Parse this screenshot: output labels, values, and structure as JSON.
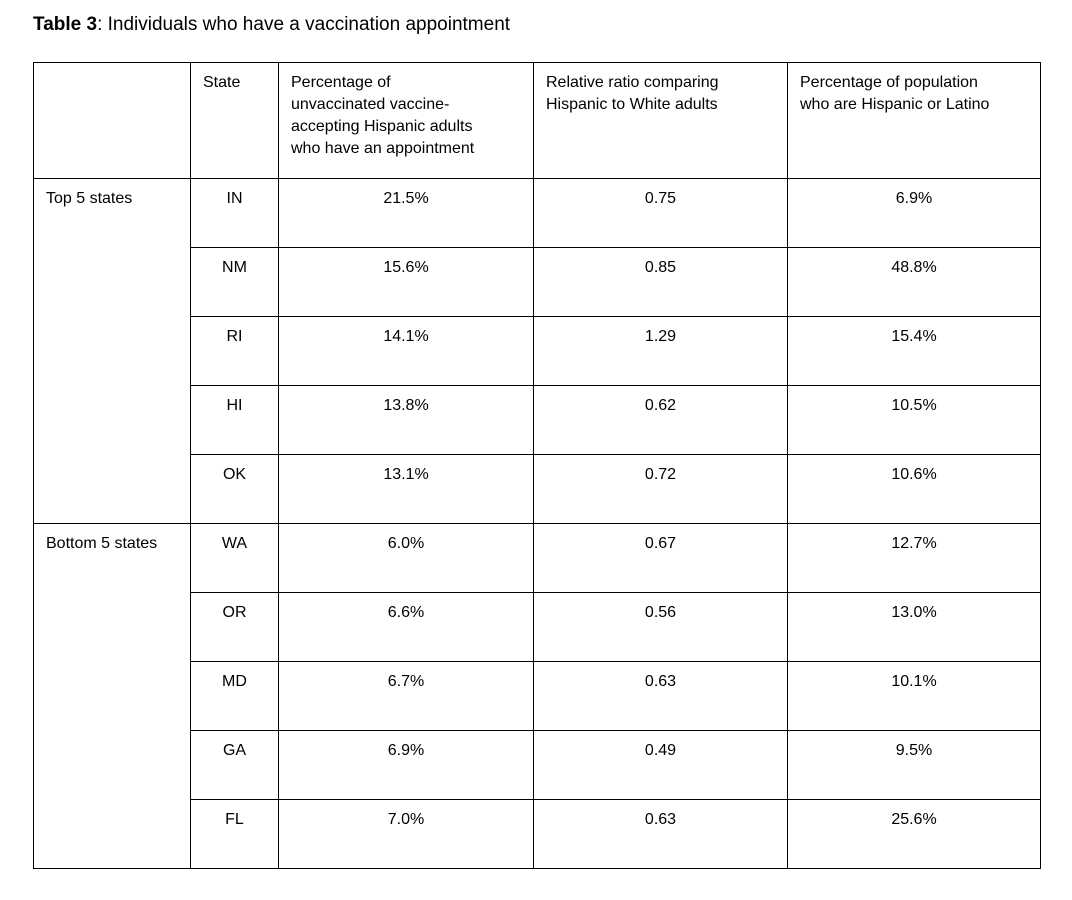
{
  "page": {
    "title_bold": "Table 3",
    "title_rest": ": Individuals who have a vaccination appointment"
  },
  "table": {
    "columns": {
      "group": "",
      "state": "State",
      "pct_appointment": "Percentage of\nunvaccinated vaccine-\naccepting Hispanic adults\nwho have an appointment",
      "relative_ratio": "Relative ratio comparing\nHispanic to White adults",
      "pct_population": "Percentage of population\nwho are Hispanic or Latino"
    },
    "groups": [
      {
        "label": "Top 5 states",
        "rows": [
          {
            "state": "IN",
            "pct_appointment": "21.5%",
            "relative_ratio": "0.75",
            "pct_population": "6.9%"
          },
          {
            "state": "NM",
            "pct_appointment": "15.6%",
            "relative_ratio": "0.85",
            "pct_population": "48.8%"
          },
          {
            "state": "RI",
            "pct_appointment": "14.1%",
            "relative_ratio": "1.29",
            "pct_population": "15.4%"
          },
          {
            "state": "HI",
            "pct_appointment": "13.8%",
            "relative_ratio": "0.62",
            "pct_population": "10.5%"
          },
          {
            "state": "OK",
            "pct_appointment": "13.1%",
            "relative_ratio": "0.72",
            "pct_population": "10.6%"
          }
        ]
      },
      {
        "label": "Bottom 5 states",
        "rows": [
          {
            "state": "WA",
            "pct_appointment": "6.0%",
            "relative_ratio": "0.67",
            "pct_population": "12.7%"
          },
          {
            "state": "OR",
            "pct_appointment": "6.6%",
            "relative_ratio": "0.56",
            "pct_population": "13.0%"
          },
          {
            "state": "MD",
            "pct_appointment": "6.7%",
            "relative_ratio": "0.63",
            "pct_population": "10.1%"
          },
          {
            "state": "GA",
            "pct_appointment": "6.9%",
            "relative_ratio": "0.49",
            "pct_population": "9.5%"
          },
          {
            "state": "FL",
            "pct_appointment": "7.0%",
            "relative_ratio": "0.63",
            "pct_population": "25.6%"
          }
        ]
      }
    ]
  },
  "colors": {
    "background": "#ffffff",
    "text": "#000000",
    "border": "#000000"
  }
}
